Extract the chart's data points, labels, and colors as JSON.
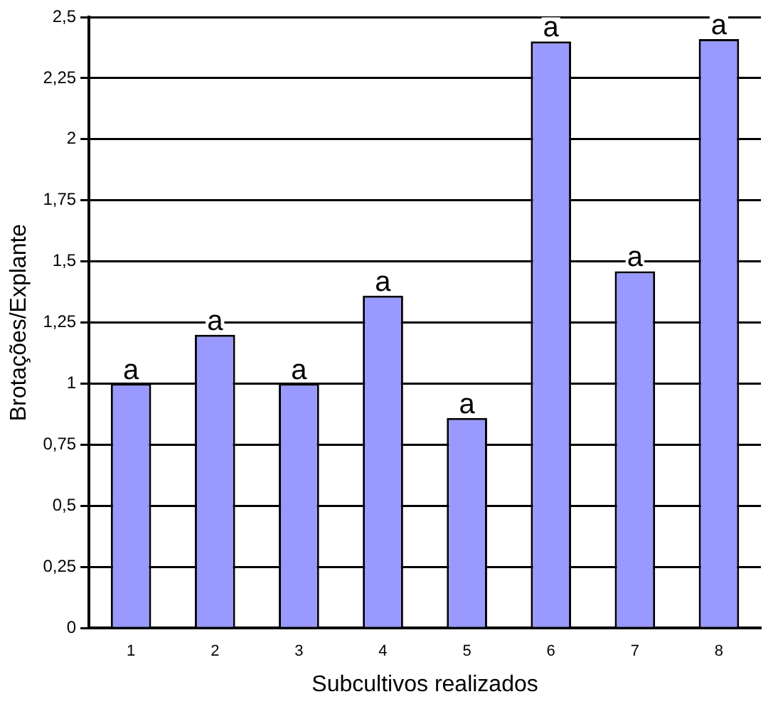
{
  "chart_data": {
    "type": "bar",
    "xlabel": "Subcultivos realizados",
    "ylabel": "Brotações/Explante",
    "categories": [
      "1",
      "2",
      "3",
      "4",
      "5",
      "6",
      "7",
      "8"
    ],
    "values": [
      1.0,
      1.2,
      1.0,
      1.36,
      0.86,
      2.4,
      1.46,
      2.41
    ],
    "value_labels": [
      "a",
      "a",
      "a",
      "a",
      "a",
      "a",
      "a",
      "a"
    ],
    "color": "#9999ff",
    "ylim": [
      0,
      2.5
    ],
    "yticks": [
      0,
      {
        "value": 0.25,
        "label": "0,25"
      },
      {
        "value": 0.5,
        "label": "0,5"
      },
      {
        "value": 0.75,
        "label": "0,75"
      },
      1,
      {
        "value": 1.25,
        "label": "1,25"
      },
      {
        "value": 1.5,
        "label": "1,5"
      },
      {
        "value": 1.75,
        "label": "1,75"
      },
      2,
      {
        "value": 2.25,
        "label": "2,25"
      },
      {
        "value": 2.5,
        "label": "2,5"
      }
    ],
    "grid": "y",
    "legend": false
  }
}
